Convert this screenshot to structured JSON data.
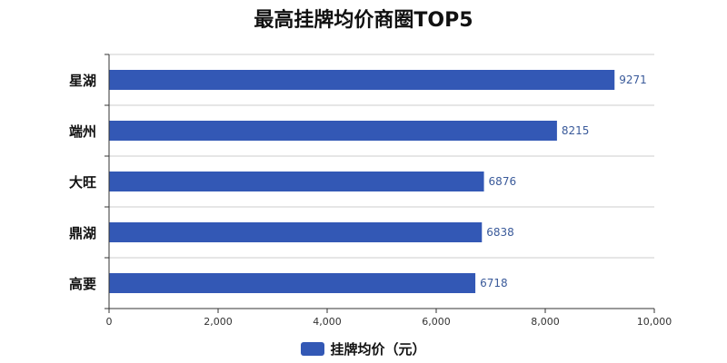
{
  "chart_data": {
    "type": "bar",
    "orientation": "horizontal",
    "title": "最高挂牌均价商圈TOP5",
    "categories": [
      "星湖",
      "端州",
      "大旺",
      "鼎湖",
      "高要"
    ],
    "series": [
      {
        "name": "挂牌均价（元）",
        "values": [
          9271,
          8215,
          6876,
          6838,
          6718
        ],
        "color": "#3358b5"
      }
    ],
    "xlim": [
      0,
      10000
    ],
    "x_ticks": [
      "0",
      "2,000",
      "4,000",
      "6,000",
      "8,000",
      "10,000"
    ],
    "grid": true,
    "legend_position": "bottom-center",
    "data_label_color": "#3a5a9a"
  }
}
